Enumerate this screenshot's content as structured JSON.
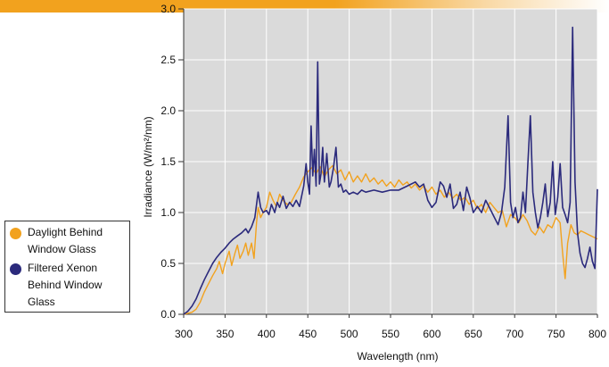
{
  "header": {
    "title": "",
    "color": "#f2a21e"
  },
  "chart_data": {
    "type": "line",
    "xlabel": "Wavelength (nm)",
    "ylabel": "Irradiance (W/m²/nm)",
    "xlim": [
      300,
      800
    ],
    "ylim": [
      0,
      3.0
    ],
    "x_ticks": [
      "300",
      "350",
      "400",
      "450",
      "500",
      "550",
      "600",
      "650",
      "700",
      "750",
      "800"
    ],
    "y_ticks": [
      "0.0",
      "0.5",
      "1.0",
      "1.5",
      "2.0",
      "2.5",
      "3.0"
    ],
    "grid": true,
    "background": "#dadada",
    "legend_placement": "left",
    "series": [
      {
        "name": "Daylight Behind Window Glass",
        "color": "#f2a21e",
        "points": [
          [
            300,
            0
          ],
          [
            305,
            0.01
          ],
          [
            310,
            0.02
          ],
          [
            315,
            0.05
          ],
          [
            320,
            0.12
          ],
          [
            325,
            0.22
          ],
          [
            330,
            0.3
          ],
          [
            335,
            0.38
          ],
          [
            340,
            0.45
          ],
          [
            343,
            0.52
          ],
          [
            347,
            0.4
          ],
          [
            350,
            0.5
          ],
          [
            355,
            0.62
          ],
          [
            358,
            0.48
          ],
          [
            362,
            0.6
          ],
          [
            365,
            0.68
          ],
          [
            368,
            0.55
          ],
          [
            372,
            0.62
          ],
          [
            375,
            0.7
          ],
          [
            378,
            0.58
          ],
          [
            382,
            0.7
          ],
          [
            385,
            0.55
          ],
          [
            388,
            0.9
          ],
          [
            390,
            1.05
          ],
          [
            393,
            0.95
          ],
          [
            396,
            1.0
          ],
          [
            400,
            1.05
          ],
          [
            404,
            1.2
          ],
          [
            408,
            1.12
          ],
          [
            412,
            1.06
          ],
          [
            416,
            1.18
          ],
          [
            420,
            1.12
          ],
          [
            425,
            1.08
          ],
          [
            430,
            1.1
          ],
          [
            435,
            1.18
          ],
          [
            440,
            1.25
          ],
          [
            445,
            1.35
          ],
          [
            450,
            1.4
          ],
          [
            455,
            1.44
          ],
          [
            460,
            1.38
          ],
          [
            465,
            1.45
          ],
          [
            470,
            1.35
          ],
          [
            475,
            1.42
          ],
          [
            480,
            1.46
          ],
          [
            485,
            1.38
          ],
          [
            490,
            1.42
          ],
          [
            495,
            1.32
          ],
          [
            500,
            1.4
          ],
          [
            505,
            1.3
          ],
          [
            510,
            1.36
          ],
          [
            515,
            1.3
          ],
          [
            520,
            1.38
          ],
          [
            525,
            1.3
          ],
          [
            530,
            1.34
          ],
          [
            535,
            1.28
          ],
          [
            540,
            1.32
          ],
          [
            545,
            1.26
          ],
          [
            550,
            1.3
          ],
          [
            555,
            1.25
          ],
          [
            560,
            1.32
          ],
          [
            565,
            1.27
          ],
          [
            570,
            1.3
          ],
          [
            575,
            1.24
          ],
          [
            580,
            1.28
          ],
          [
            585,
            1.22
          ],
          [
            590,
            1.26
          ],
          [
            595,
            1.2
          ],
          [
            600,
            1.25
          ],
          [
            605,
            1.18
          ],
          [
            610,
            1.22
          ],
          [
            615,
            1.15
          ],
          [
            620,
            1.2
          ],
          [
            625,
            1.14
          ],
          [
            630,
            1.18
          ],
          [
            635,
            1.12
          ],
          [
            640,
            1.15
          ],
          [
            645,
            1.08
          ],
          [
            650,
            1.12
          ],
          [
            655,
            1.04
          ],
          [
            660,
            1.08
          ],
          [
            665,
            1.0
          ],
          [
            670,
            1.1
          ],
          [
            675,
            1.05
          ],
          [
            680,
            1.0
          ],
          [
            685,
            1.02
          ],
          [
            690,
            0.86
          ],
          [
            695,
            0.98
          ],
          [
            700,
            0.95
          ],
          [
            705,
            0.9
          ],
          [
            710,
            0.98
          ],
          [
            715,
            0.92
          ],
          [
            720,
            0.82
          ],
          [
            725,
            0.78
          ],
          [
            730,
            0.86
          ],
          [
            735,
            0.8
          ],
          [
            740,
            0.88
          ],
          [
            745,
            0.85
          ],
          [
            750,
            0.95
          ],
          [
            755,
            0.9
          ],
          [
            758,
            0.6
          ],
          [
            761,
            0.35
          ],
          [
            764,
            0.7
          ],
          [
            768,
            0.88
          ],
          [
            772,
            0.8
          ],
          [
            776,
            0.78
          ],
          [
            780,
            0.82
          ],
          [
            785,
            0.8
          ],
          [
            790,
            0.78
          ],
          [
            795,
            0.76
          ],
          [
            800,
            0.74
          ]
        ]
      },
      {
        "name": "Filtered Xenon Behind Window Glass",
        "color": "#2b2a7c",
        "points": [
          [
            300,
            0
          ],
          [
            305,
            0.03
          ],
          [
            310,
            0.08
          ],
          [
            315,
            0.15
          ],
          [
            320,
            0.25
          ],
          [
            325,
            0.34
          ],
          [
            330,
            0.42
          ],
          [
            335,
            0.5
          ],
          [
            340,
            0.56
          ],
          [
            345,
            0.61
          ],
          [
            350,
            0.65
          ],
          [
            355,
            0.7
          ],
          [
            360,
            0.74
          ],
          [
            365,
            0.77
          ],
          [
            370,
            0.8
          ],
          [
            375,
            0.84
          ],
          [
            378,
            0.8
          ],
          [
            382,
            0.86
          ],
          [
            386,
            0.95
          ],
          [
            390,
            1.2
          ],
          [
            393,
            1.05
          ],
          [
            396,
            1.0
          ],
          [
            400,
            1.02
          ],
          [
            403,
            0.98
          ],
          [
            406,
            1.08
          ],
          [
            410,
            1.0
          ],
          [
            413,
            1.1
          ],
          [
            416,
            1.05
          ],
          [
            420,
            1.16
          ],
          [
            424,
            1.04
          ],
          [
            428,
            1.1
          ],
          [
            432,
            1.06
          ],
          [
            436,
            1.12
          ],
          [
            440,
            1.06
          ],
          [
            445,
            1.26
          ],
          [
            448,
            1.48
          ],
          [
            450,
            1.3
          ],
          [
            452,
            1.18
          ],
          [
            454,
            1.85
          ],
          [
            456,
            1.36
          ],
          [
            458,
            1.62
          ],
          [
            460,
            1.26
          ],
          [
            462,
            2.48
          ],
          [
            464,
            1.28
          ],
          [
            466,
            1.38
          ],
          [
            468,
            1.64
          ],
          [
            470,
            1.3
          ],
          [
            473,
            1.58
          ],
          [
            476,
            1.25
          ],
          [
            478,
            1.3
          ],
          [
            481,
            1.44
          ],
          [
            484,
            1.64
          ],
          [
            487,
            1.25
          ],
          [
            490,
            1.28
          ],
          [
            493,
            1.2
          ],
          [
            496,
            1.22
          ],
          [
            500,
            1.18
          ],
          [
            505,
            1.2
          ],
          [
            510,
            1.18
          ],
          [
            515,
            1.22
          ],
          [
            520,
            1.2
          ],
          [
            530,
            1.22
          ],
          [
            540,
            1.2
          ],
          [
            550,
            1.22
          ],
          [
            560,
            1.22
          ],
          [
            570,
            1.26
          ],
          [
            580,
            1.3
          ],
          [
            585,
            1.25
          ],
          [
            590,
            1.28
          ],
          [
            595,
            1.12
          ],
          [
            600,
            1.05
          ],
          [
            605,
            1.1
          ],
          [
            610,
            1.3
          ],
          [
            614,
            1.26
          ],
          [
            618,
            1.15
          ],
          [
            622,
            1.28
          ],
          [
            626,
            1.04
          ],
          [
            630,
            1.08
          ],
          [
            634,
            1.2
          ],
          [
            638,
            1.02
          ],
          [
            642,
            1.25
          ],
          [
            646,
            1.14
          ],
          [
            650,
            1.0
          ],
          [
            655,
            1.06
          ],
          [
            660,
            1.0
          ],
          [
            665,
            1.12
          ],
          [
            670,
            1.04
          ],
          [
            675,
            0.96
          ],
          [
            680,
            0.88
          ],
          [
            684,
            1.0
          ],
          [
            688,
            1.25
          ],
          [
            692,
            1.95
          ],
          [
            695,
            1.1
          ],
          [
            698,
            0.95
          ],
          [
            701,
            1.05
          ],
          [
            704,
            0.9
          ],
          [
            707,
            0.95
          ],
          [
            710,
            1.2
          ],
          [
            713,
            1.0
          ],
          [
            716,
            1.48
          ],
          [
            719,
            1.95
          ],
          [
            722,
            1.2
          ],
          [
            725,
            1.0
          ],
          [
            728,
            0.85
          ],
          [
            731,
            0.95
          ],
          [
            734,
            1.1
          ],
          [
            737,
            1.28
          ],
          [
            740,
            0.96
          ],
          [
            743,
            1.1
          ],
          [
            746,
            1.5
          ],
          [
            749,
            0.98
          ],
          [
            752,
            1.15
          ],
          [
            755,
            1.48
          ],
          [
            758,
            1.05
          ],
          [
            761,
            0.98
          ],
          [
            764,
            0.9
          ],
          [
            767,
            1.1
          ],
          [
            770,
            2.82
          ],
          [
            773,
            1.3
          ],
          [
            776,
            0.8
          ],
          [
            779,
            0.6
          ],
          [
            782,
            0.5
          ],
          [
            785,
            0.46
          ],
          [
            788,
            0.55
          ],
          [
            791,
            0.66
          ],
          [
            794,
            0.52
          ],
          [
            797,
            0.45
          ],
          [
            800,
            1.23
          ]
        ]
      }
    ]
  }
}
